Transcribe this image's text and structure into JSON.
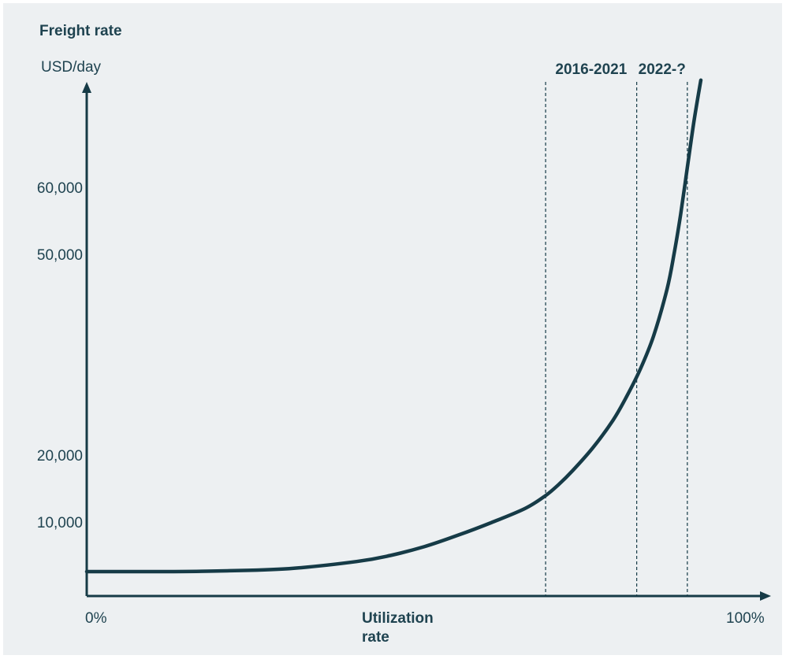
{
  "chart_data": {
    "type": "line",
    "title": "Freight rate",
    "ylabel": "USD/day",
    "xlabel": [
      "Utilization",
      "rate"
    ],
    "x_tick_labels": {
      "left": "0%",
      "right": "100%"
    },
    "y_ticks": [
      {
        "value": 10000,
        "label": "10,000"
      },
      {
        "value": 20000,
        "label": "20,000"
      },
      {
        "value": 50000,
        "label": "50,000"
      },
      {
        "value": 60000,
        "label": "60,000"
      }
    ],
    "xlim": [
      0,
      100
    ],
    "series": [
      {
        "x": [
          0,
          10,
          20,
          30,
          40,
          45,
          50,
          55,
          60,
          65,
          68,
          70,
          72,
          75,
          78,
          80,
          82,
          84,
          86,
          87,
          88,
          89,
          90,
          91
        ],
        "y": [
          0,
          0,
          100,
          450,
          1500,
          2400,
          3700,
          5400,
          7300,
          9400,
          11300,
          13000,
          15000,
          18400,
          22500,
          26000,
          30000,
          35000,
          42000,
          47000,
          53000,
          60000,
          67000,
          73000
        ]
      }
    ],
    "reference_lines": [
      {
        "x": 68,
        "style": "dashed"
      },
      {
        "x": 81.5,
        "style": "dashed"
      },
      {
        "x": 89,
        "style": "dashed"
      }
    ],
    "period_labels": [
      {
        "label": "2016-2021"
      },
      {
        "label": "2022-?"
      }
    ],
    "grid": false,
    "colors": {
      "line": "#163b47",
      "axis": "#163b47",
      "text": "#1f4350",
      "background": "#edf0f2"
    }
  }
}
